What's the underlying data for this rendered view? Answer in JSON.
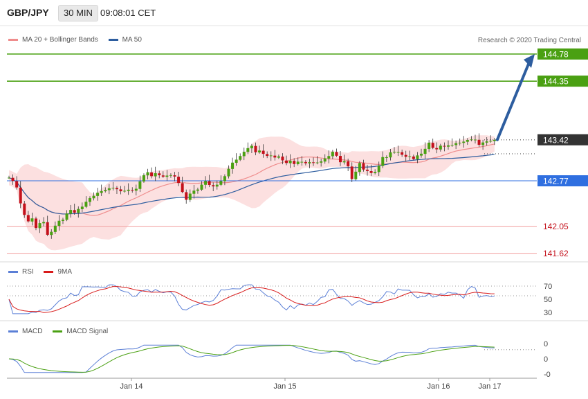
{
  "header": {
    "symbol": "GBP/JPY",
    "timeframe": "30 MIN",
    "time": "09:08:01 CET"
  },
  "copyright": "Research © 2020 Trading Central",
  "legends": {
    "price": [
      {
        "label": "MA 20 + Bollinger Bands",
        "color": "#ef8c8c"
      },
      {
        "label": "MA 50",
        "color": "#2d5d9f"
      }
    ],
    "rsi": [
      {
        "label": "RSI",
        "color": "#5b7fd6"
      },
      {
        "label": "9MA",
        "color": "#d81b1b"
      }
    ],
    "macd": [
      {
        "label": "MACD",
        "color": "#5b7fd6"
      },
      {
        "label": "MACD Signal",
        "color": "#4aa012"
      }
    ]
  },
  "colors": {
    "up": "#4aa012",
    "down": "#c4101b",
    "line_blue": "#2d5d9f",
    "level_green": "#4aa012",
    "level_red": "#f2a7a7",
    "badge_blue": "#2f6fe0",
    "badge_dark": "#333333",
    "arrow": "#2d5d9f"
  },
  "chart_data": [
    {
      "type": "candlestick",
      "title": "GBP/JPY",
      "price_axis_labels": [
        "144.78",
        "144.35",
        "143.42",
        "142.77",
        "142.05",
        "141.62"
      ],
      "levels": [
        {
          "value": 144.78,
          "label": "144.78",
          "kind": "resistance"
        },
        {
          "value": 144.35,
          "label": "144.35",
          "kind": "resistance"
        },
        {
          "value": 143.42,
          "label": "143.42",
          "kind": "last_price"
        },
        {
          "value": 142.77,
          "label": "142.77",
          "kind": "pivot"
        },
        {
          "value": 142.05,
          "label": "142.05",
          "kind": "support"
        },
        {
          "value": 141.62,
          "label": "141.62",
          "kind": "support"
        }
      ],
      "x_tick_labels": [
        "Jan 14",
        "Jan 15",
        "Jan 16",
        "Jan 17"
      ],
      "candle_start": 142.82,
      "candle_steps": [
        0.0,
        -0.05,
        -0.1,
        -0.25,
        -0.18,
        -0.1,
        0.05,
        -0.15,
        0.08,
        0.02,
        -0.2,
        0.05,
        0.1,
        0.08,
        0.02,
        0.1,
        0.06,
        -0.04,
        0.06,
        0.04,
        0.08,
        0.06,
        0.04,
        0.05,
        0.03,
        0.02,
        0.03,
        0.01,
        -0.02,
        -0.03,
        0.01,
        0.02,
        -0.01,
        0.03,
        0.12,
        0.1,
        0.05,
        -0.06,
        0.05,
        -0.03,
        -0.02,
        0.02,
        0.01,
        -0.02,
        -0.1,
        -0.14,
        -0.12,
        0.1,
        0.05,
        0.02,
        0.08,
        0.06,
        -0.06,
        -0.02,
        0.03,
        0.06,
        0.08,
        0.12,
        0.1,
        0.05,
        0.06,
        0.07,
        0.06,
        0.04,
        -0.1,
        0.03,
        -0.05,
        -0.03,
        0.01,
        -0.03,
        0.02,
        -0.06,
        -0.04,
        0.04,
        -0.05,
        0.04,
        0.0,
        -0.02,
        0.02,
        -0.01,
        0.01,
        0.02,
        0.05,
        0.04,
        0.07,
        -0.06,
        -0.1,
        0.02,
        -0.08,
        -0.2,
        0.12,
        0.14,
        -0.1,
        -0.02,
        -0.03,
        0.02,
        0.1,
        0.14,
        0.0,
        0.08,
        0.01,
        0.0,
        -0.04,
        -0.03,
        0.01,
        -0.04,
        0.06,
        0.03,
        0.08,
        0.1,
        -0.08,
        -0.02,
        0.06,
        -0.01,
        0.02,
        0.01,
        0.03,
        0.01,
        0.02,
        0.03,
        0.01,
        0.0,
        -0.08,
        0.04,
        0.02,
        0.01,
        0.02
      ],
      "last_price": 143.42,
      "projection_target": 144.78,
      "y_range": [
        141.5,
        145.0
      ],
      "series": [
        {
          "name": "MA 20 + Bollinger Bands"
        },
        {
          "name": "MA 50"
        }
      ]
    },
    {
      "type": "line",
      "title": "RSI",
      "y_tick_labels": [
        "70",
        "50",
        "30"
      ],
      "ylim": [
        20,
        80
      ],
      "guide_levels": [
        70,
        56
      ],
      "series": [
        {
          "name": "RSI"
        },
        {
          "name": "9MA"
        }
      ]
    },
    {
      "type": "line",
      "title": "MACD",
      "y_tick_labels": [
        "0",
        "0",
        "-0"
      ],
      "ylim": [
        -0.12,
        0.12
      ],
      "series": [
        {
          "name": "MACD"
        },
        {
          "name": "MACD Signal"
        }
      ]
    }
  ]
}
